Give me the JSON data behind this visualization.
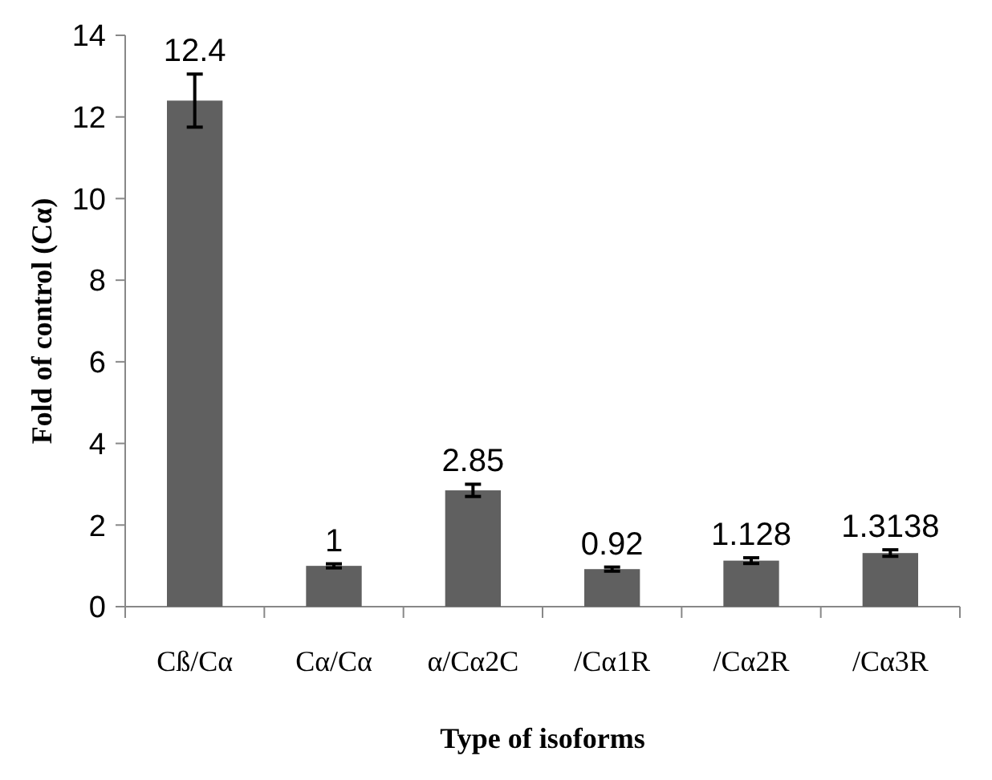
{
  "chart_data": {
    "type": "bar",
    "xlabel": "Type of isoforms",
    "ylabel": "Fold of control (Cα)",
    "categories": [
      "Cß/Cα",
      "Cα/Cα",
      "α/Cα2C",
      "/Cα1R",
      "/Cα2R",
      "/Cα3R"
    ],
    "values": [
      12.4,
      1,
      2.85,
      0.92,
      1.128,
      1.3138
    ],
    "errors": [
      0.65,
      0.05,
      0.15,
      0.05,
      0.07,
      0.08
    ],
    "color": "#606060",
    "ylim": [
      0,
      14
    ],
    "yticks": [
      0,
      2,
      4,
      6,
      8,
      10,
      12,
      14
    ],
    "data_labels": true
  }
}
